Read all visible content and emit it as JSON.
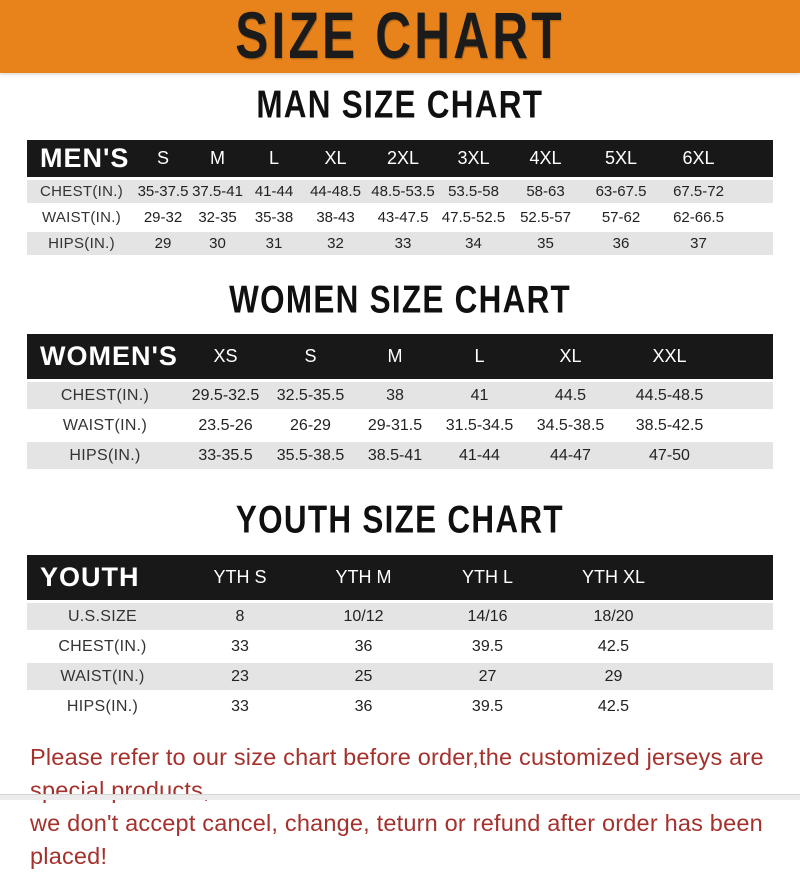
{
  "banner": {
    "title": "SIZE CHART"
  },
  "sections": [
    {
      "title": "MAN SIZE CHART"
    },
    {
      "title": "WOMEN SIZE CHART"
    },
    {
      "title": "YOUTH SIZE CHART"
    }
  ],
  "tables": [
    {
      "id": "men",
      "header": [
        "MEN'S",
        "S",
        "M",
        "L",
        "XL",
        "2XL",
        "3XL",
        "4XL",
        "5XL",
        "6XL"
      ],
      "rows": [
        [
          "CHEST(IN.)",
          "35-37.5",
          "37.5-41",
          "41-44",
          "44-48.5",
          "48.5-53.5",
          "53.5-58",
          "58-63",
          "63-67.5",
          "67.5-72"
        ],
        [
          "WAIST(IN.)",
          "29-32",
          "32-35",
          "35-38",
          "38-43",
          "43-47.5",
          "47.5-52.5",
          "52.5-57",
          "57-62",
          "62-66.5"
        ],
        [
          "HIPS(IN.)",
          "29",
          "30",
          "31",
          "32",
          "33",
          "34",
          "35",
          "36",
          "37"
        ]
      ]
    },
    {
      "id": "women",
      "header": [
        "WOMEN'S",
        "XS",
        "S",
        "M",
        "L",
        "XL",
        "XXL"
      ],
      "rows": [
        [
          "CHEST(IN.)",
          "29.5-32.5",
          "32.5-35.5",
          "38",
          "41",
          "44.5",
          "44.5-48.5"
        ],
        [
          "WAIST(IN.)",
          "23.5-26",
          "26-29",
          "29-31.5",
          "31.5-34.5",
          "34.5-38.5",
          "38.5-42.5"
        ],
        [
          "HIPS(IN.)",
          "33-35.5",
          "35.5-38.5",
          "38.5-41",
          "41-44",
          "44-47",
          "47-50"
        ]
      ]
    },
    {
      "id": "youth",
      "header": [
        "YOUTH",
        "YTH S",
        "YTH M",
        "YTH L",
        "YTH XL"
      ],
      "rows": [
        [
          "U.S.SIZE",
          "8",
          "10/12",
          "14/16",
          "18/20"
        ],
        [
          "CHEST(IN.)",
          "33",
          "36",
          "39.5",
          "42.5"
        ],
        [
          "WAIST(IN.)",
          "23",
          "25",
          "27",
          "29"
        ],
        [
          "HIPS(IN.)",
          "33",
          "36",
          "39.5",
          "42.5"
        ]
      ]
    }
  ],
  "footer": {
    "line1": "Please refer to our size chart before order,the customized jerseys are special products,",
    "line2": "we don't accept cancel, change, teturn or refund after order has been placed!"
  },
  "colors": {
    "banner_orange": "#E8831C",
    "header_bar_black": "#181818",
    "row_stripe_gray": "#E4E4E4",
    "notice_red": "#A5312D"
  }
}
